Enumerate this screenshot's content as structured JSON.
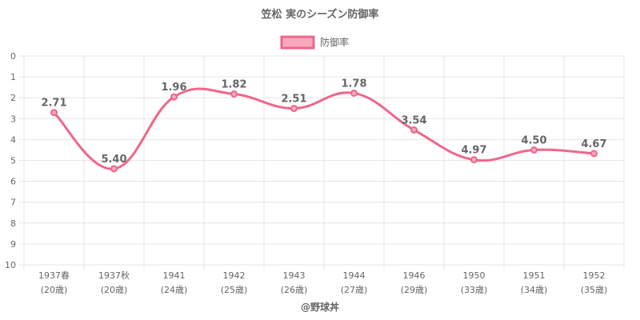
{
  "chart_data": {
    "type": "line",
    "title": "笠松 実のシーズン防御率",
    "categories": [
      [
        "1937春",
        "(20歳)"
      ],
      [
        "1937秋",
        "(20歳)"
      ],
      [
        "1941",
        "(24歳)"
      ],
      [
        "1942",
        "(25歳)"
      ],
      [
        "1943",
        "(26歳)"
      ],
      [
        "1944",
        "(27歳)"
      ],
      [
        "1946",
        "(29歳)"
      ],
      [
        "1950",
        "(33歳)"
      ],
      [
        "1951",
        "(34歳)"
      ],
      [
        "1952",
        "(35歳)"
      ]
    ],
    "series": [
      {
        "name": "防御率",
        "values": [
          2.71,
          5.4,
          1.96,
          1.82,
          2.51,
          1.78,
          3.54,
          4.97,
          4.5,
          4.67
        ],
        "labels": [
          "2.71",
          "5.40",
          "1.96",
          "1.82",
          "2.51",
          "1.78",
          "3.54",
          "4.97",
          "4.50",
          "4.67"
        ],
        "color": "#f0668a"
      }
    ],
    "ylim": [
      0,
      10
    ],
    "y_reversed": true,
    "y_ticks": [
      "0",
      "1",
      "2",
      "3",
      "4",
      "5",
      "6",
      "7",
      "8",
      "9",
      "10"
    ],
    "grid": true,
    "legend_position": "top"
  },
  "credit": "@野球丼"
}
